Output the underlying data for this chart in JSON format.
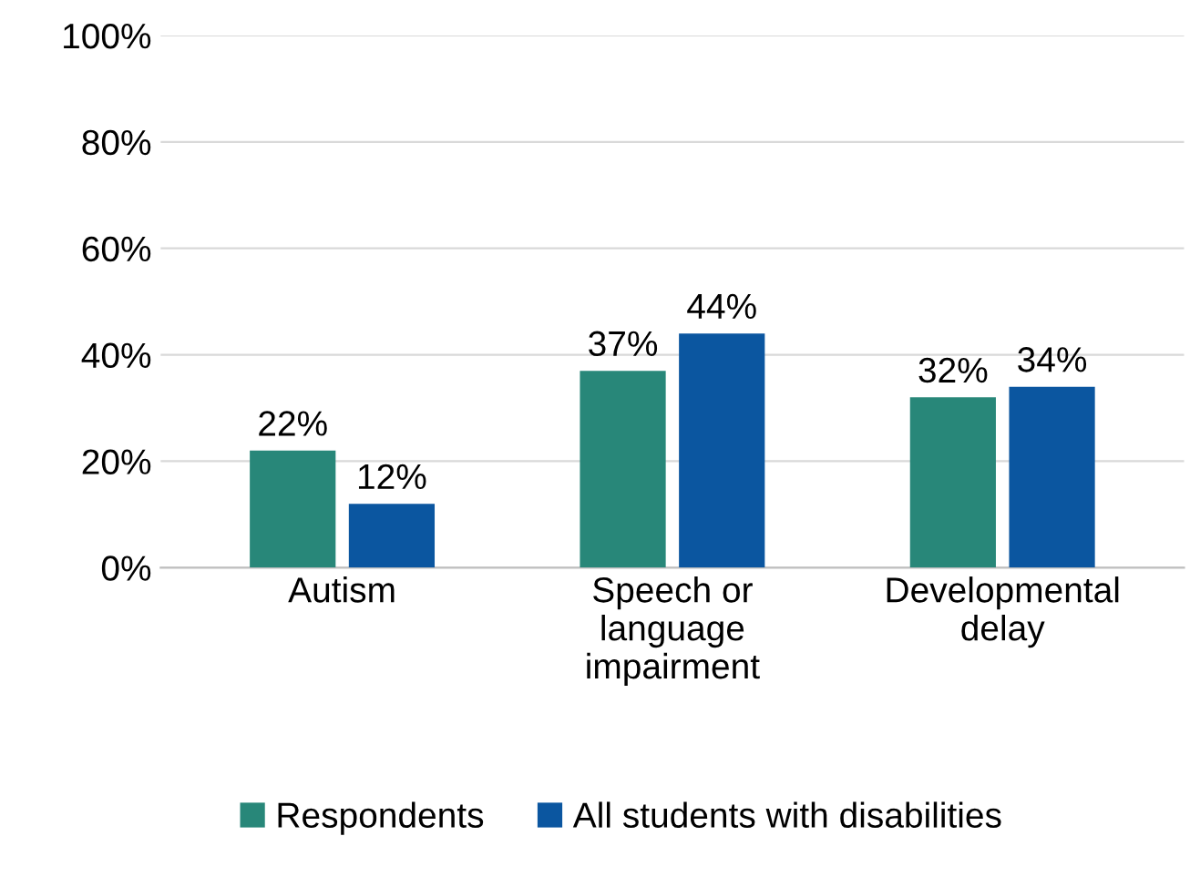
{
  "chart_data": {
    "type": "bar",
    "categories": [
      "Autism",
      "Speech or\nlanguage\nimpairment",
      "Developmental\ndelay"
    ],
    "series": [
      {
        "name": "Respondents",
        "color": "#288779",
        "values": [
          22,
          37,
          32
        ],
        "value_labels": [
          "22%",
          "37%",
          "32%"
        ]
      },
      {
        "name": "All students with disabilities",
        "color": "#0b56a0",
        "values": [
          12,
          44,
          34
        ],
        "value_labels": [
          "12%",
          "44%",
          "34%"
        ]
      }
    ],
    "ylim": [
      0,
      100
    ],
    "yticks": [
      {
        "value": 0,
        "label": "0%"
      },
      {
        "value": 20,
        "label": "20%"
      },
      {
        "value": 40,
        "label": "40%"
      },
      {
        "value": 60,
        "label": "60%"
      },
      {
        "value": 80,
        "label": "80%"
      },
      {
        "value": 100,
        "label": "100%"
      }
    ],
    "grid": "y",
    "legend": "bottom"
  }
}
